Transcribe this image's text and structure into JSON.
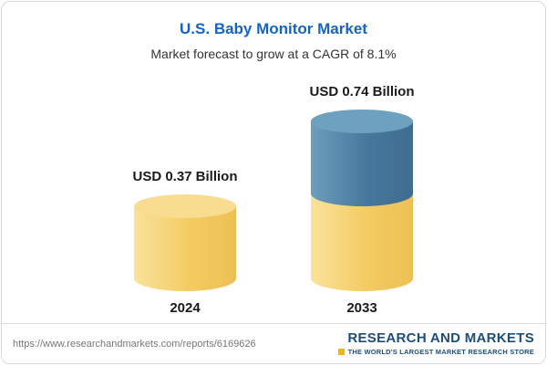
{
  "chart_data": {
    "type": "bar",
    "variant": "cylinder",
    "title": "U.S. Baby Monitor Market",
    "subtitle": "Market forecast to grow at a CAGR of 8.1%",
    "unit": "USD Billion",
    "cagr": "8.1%",
    "categories": [
      "2024",
      "2033"
    ],
    "values": [
      0.37,
      0.74
    ],
    "bars": [
      {
        "category": "2024",
        "label": "USD 0.37 Billion",
        "value": 0.37
      },
      {
        "category": "2033",
        "label": "USD 0.74 Billion",
        "value": 0.74
      }
    ],
    "colors": {
      "base_segment": "#F2C95F",
      "growth_segment": "#44749B",
      "title": "#1565C0"
    },
    "legend": "none",
    "grid": false
  },
  "footer": {
    "url": "https://www.researchandmarkets.com/reports/6169626",
    "logo_name": "RESEARCH AND MARKETS",
    "logo_tagline": "THE WORLD'S LARGEST MARKET RESEARCH STORE"
  }
}
